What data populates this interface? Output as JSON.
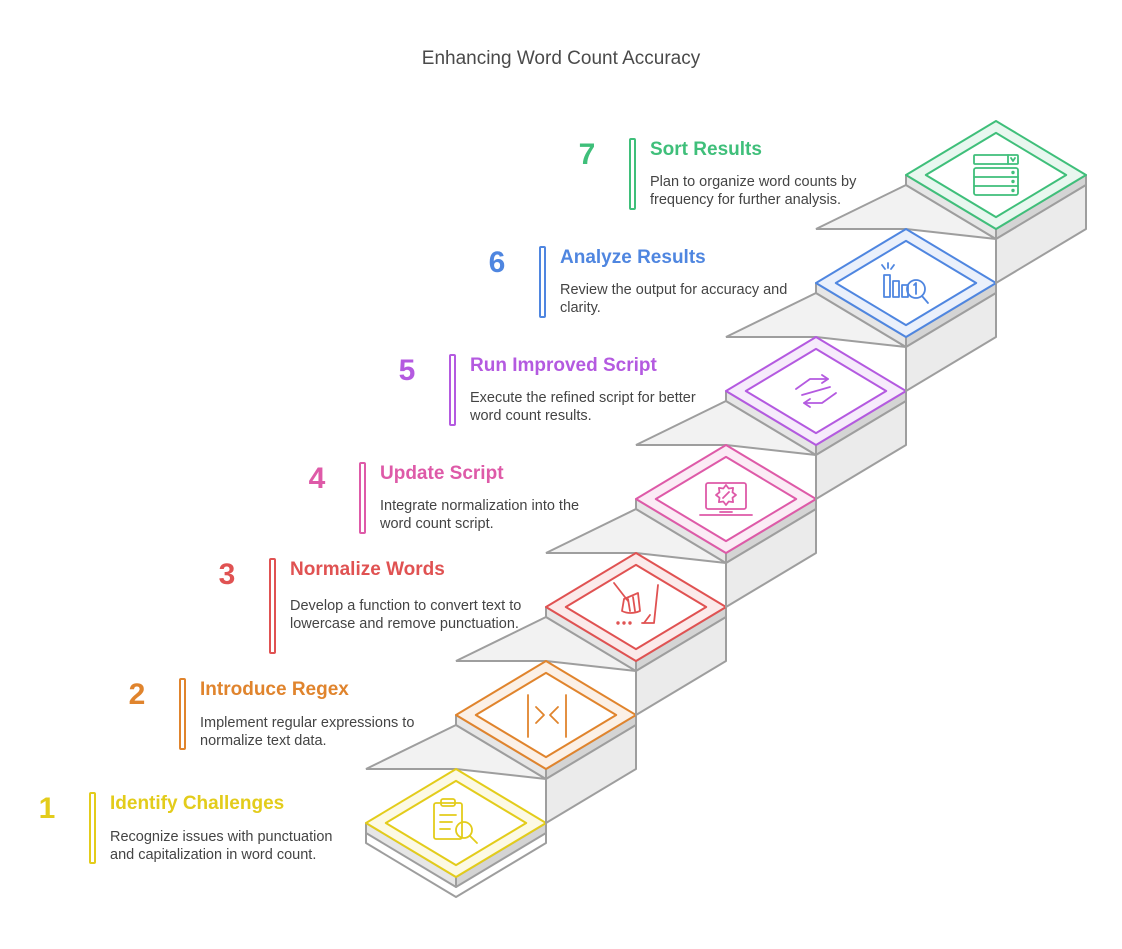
{
  "title": "Enhancing Word Count Accuracy",
  "steps": [
    {
      "number": "1",
      "title": "Identify Challenges",
      "description": "Recognize issues with punctuation and capitalization in word count.",
      "color": "#e3cc1b",
      "icon": "clipboard-search-icon"
    },
    {
      "number": "2",
      "title": "Introduce Regex",
      "description": "Implement regular expressions to normalize text data.",
      "color": "#e0842d",
      "icon": "regex-brackets-icon"
    },
    {
      "number": "3",
      "title": "Normalize Words",
      "description": "Develop a function to convert text to lowercase and remove punctuation.",
      "color": "#e05252",
      "icon": "broom-sweep-icon"
    },
    {
      "number": "4",
      "title": "Update Script",
      "description": "Integrate normalization into the word count script.",
      "color": "#de5aa8",
      "icon": "laptop-gear-icon"
    },
    {
      "number": "5",
      "title": "Run Improved Script",
      "description": "Execute the refined script for better word count results.",
      "color": "#b45ae0",
      "icon": "exchange-arrows-icon"
    },
    {
      "number": "6",
      "title": "Analyze Results",
      "description": "Review the output for accuracy and clarity.",
      "color": "#4f86e0",
      "icon": "chart-magnifier-icon"
    },
    {
      "number": "7",
      "title": "Sort Results",
      "description": "Plan to organize word counts by frequency for further analysis.",
      "color": "#3fbf7a",
      "icon": "sorted-list-icon"
    }
  ]
}
